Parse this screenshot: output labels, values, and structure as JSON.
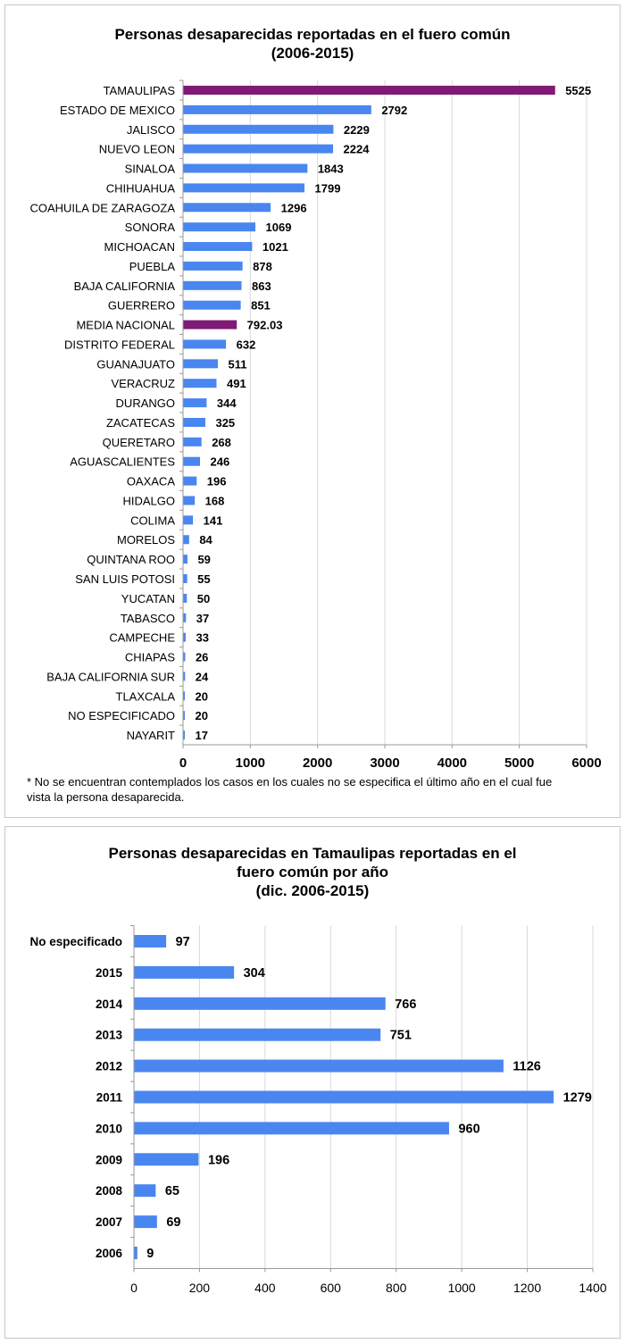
{
  "chart_data": [
    {
      "type": "bar",
      "orientation": "horizontal",
      "title": [
        "Personas desaparecidas reportadas en el fuero común",
        "(2006-2015)"
      ],
      "categories": [
        "TAMAULIPAS",
        "ESTADO DE MEXICO",
        "JALISCO",
        "NUEVO LEON",
        "SINALOA",
        "CHIHUAHUA",
        "COAHUILA DE ZARAGOZA",
        "SONORA",
        "MICHOACAN",
        "PUEBLA",
        "BAJA CALIFORNIA",
        "GUERRERO",
        "MEDIA NACIONAL",
        "DISTRITO FEDERAL",
        "GUANAJUATO",
        "VERACRUZ",
        "DURANGO",
        "ZACATECAS",
        "QUERETARO",
        "AGUASCALIENTES",
        "OAXACA",
        "HIDALGO",
        "COLIMA",
        "MORELOS",
        "QUINTANA ROO",
        "SAN LUIS POTOSI",
        "YUCATAN",
        "TABASCO",
        "CAMPECHE",
        "CHIAPAS",
        "BAJA CALIFORNIA SUR",
        "TLAXCALA",
        "NO ESPECIFICADO",
        "NAYARIT"
      ],
      "values": [
        5525,
        2792,
        2229,
        2224,
        1843,
        1799,
        1296,
        1069,
        1021,
        878,
        863,
        851,
        792.03,
        632,
        511,
        491,
        344,
        325,
        268,
        246,
        196,
        168,
        141,
        84,
        59,
        55,
        50,
        37,
        33,
        26,
        24,
        20,
        20,
        17
      ],
      "value_labels": [
        "5525",
        "2792",
        "2229",
        "2224",
        "1843",
        "1799",
        "1296",
        "1069",
        "1021",
        "878",
        "863",
        "851",
        "792.03",
        "632",
        "511",
        "491",
        "344",
        "325",
        "268",
        "246",
        "196",
        "168",
        "141",
        "84",
        "59",
        "55",
        "50",
        "37",
        "33",
        "26",
        "24",
        "20",
        "20",
        "17"
      ],
      "highlighted": [
        "TAMAULIPAS",
        "MEDIA NACIONAL"
      ],
      "xlim": [
        0,
        6000
      ],
      "xticks": [
        "0",
        "1000",
        "2000",
        "3000",
        "4000",
        "5000",
        "6000"
      ],
      "grid": true,
      "colors": {
        "bar": "#4a86f0",
        "highlight": "#7f1a76",
        "grid": "#d9d9d9"
      },
      "note": [
        "* No se encuentran contemplados los casos en los cuales no se especifica el último año en el cual fue",
        "vista la persona desaparecida."
      ]
    },
    {
      "type": "bar",
      "orientation": "horizontal",
      "title": [
        "Personas desaparecidas en Tamaulipas reportadas en el",
        "fuero común por año",
        "(dic. 2006-2015)"
      ],
      "categories": [
        "No especificado",
        "2015",
        "2014",
        "2013",
        "2012",
        "2011",
        "2010",
        "2009",
        "2008",
        "2007",
        "2006"
      ],
      "values": [
        97,
        304,
        766,
        751,
        1126,
        1279,
        960,
        196,
        65,
        69,
        9
      ],
      "value_labels": [
        "97",
        "304",
        "766",
        "751",
        "1126",
        "1279",
        "960",
        "196",
        "65",
        "69",
        "9"
      ],
      "xlim": [
        0,
        1400
      ],
      "xticks": [
        "0",
        "200",
        "400",
        "600",
        "800",
        "1000",
        "1200",
        "1400"
      ],
      "grid": true,
      "colors": {
        "bar": "#4a86f0",
        "grid": "#d9d9d9"
      }
    }
  ]
}
